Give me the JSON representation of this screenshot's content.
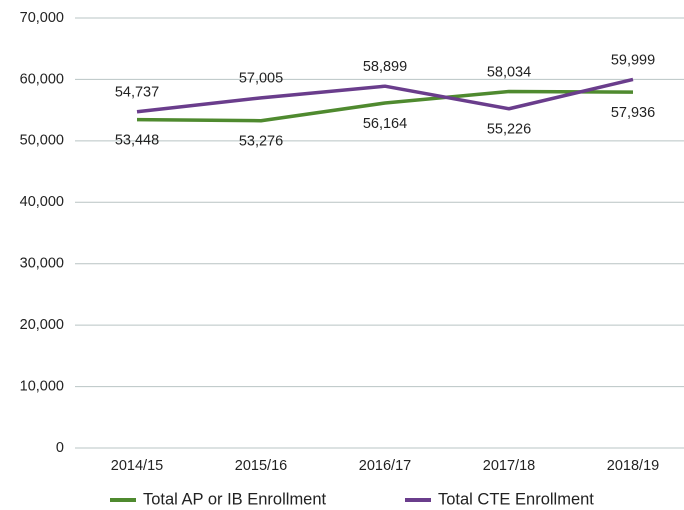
{
  "chart_data": {
    "type": "line",
    "categories": [
      "2014/15",
      "2015/16",
      "2016/17",
      "2017/18",
      "2018/19"
    ],
    "series": [
      {
        "name": "Total AP or IB Enrollment",
        "color": "#4f8a2f",
        "values": [
          53448,
          53276,
          56164,
          58034,
          57936
        ],
        "value_labels": [
          "53,448",
          "53,276",
          "56,164",
          "58,034",
          "57,936"
        ]
      },
      {
        "name": "Total CTE Enrollment",
        "color": "#6a3d8c",
        "values": [
          54737,
          57005,
          58899,
          55226,
          59999
        ],
        "value_labels": [
          "54,737",
          "57,005",
          "58,899",
          "55,226",
          "59,999"
        ]
      }
    ],
    "ylim": [
      0,
      70000
    ],
    "yticks": [
      0,
      {
        "value": 10000,
        "label": "10,000"
      },
      {
        "value": 20000,
        "label": "20,000"
      },
      {
        "value": 30000,
        "label": "30,000"
      },
      {
        "value": 40000,
        "label": "40,000"
      },
      {
        "value": 50000,
        "label": "50,000"
      },
      {
        "value": 60000,
        "label": "60,000"
      },
      {
        "value": 70000,
        "label": "70,000"
      }
    ],
    "grid": true,
    "legend": "bottom"
  }
}
